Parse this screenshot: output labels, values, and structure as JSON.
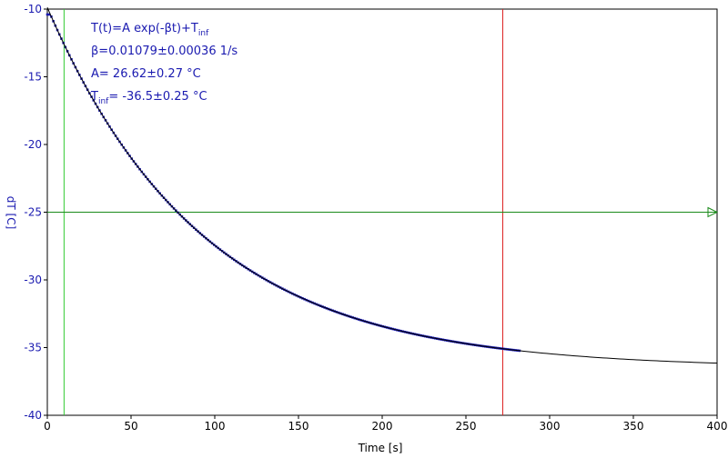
{
  "chart_data": {
    "type": "scatter",
    "xlabel": "Time [s]",
    "ylabel": "dT [C]",
    "xlim": [
      0,
      400
    ],
    "ylim": [
      -40,
      -10
    ],
    "xticks": [
      0,
      50,
      100,
      150,
      200,
      250,
      300,
      350,
      400
    ],
    "yticks": [
      -10,
      -15,
      -20,
      -25,
      -30,
      -35,
      -40
    ],
    "grid": false,
    "annotations": {
      "model": "T(t)=A exp(-βt)+T",
      "model_sub": "inf",
      "beta": "β=0.01079±0.00036 1/s",
      "A": "A= 26.62±0.27 °C",
      "tinf_prefix": "T",
      "tinf_sub": "inf",
      "tinf_value": "= -36.5±0.25 °C"
    },
    "fit": {
      "A": 26.62,
      "beta": 0.01079,
      "Tinf": -36.5,
      "x_range": [
        0,
        400
      ]
    },
    "data_series": {
      "x_range": [
        0,
        282
      ],
      "step": 1.2
    },
    "markers": {
      "vertical_lines": [
        {
          "x": 10,
          "color": "#33cc33"
        },
        {
          "x": 272,
          "color": "#dd2222"
        }
      ],
      "horizontal_line": {
        "y": -25,
        "color": "#1a8a1a"
      }
    },
    "colors": {
      "data": "#1a1ab0",
      "fit": "#000000",
      "axis": "#000000",
      "tick_text_y": "#1a1ab0"
    }
  }
}
